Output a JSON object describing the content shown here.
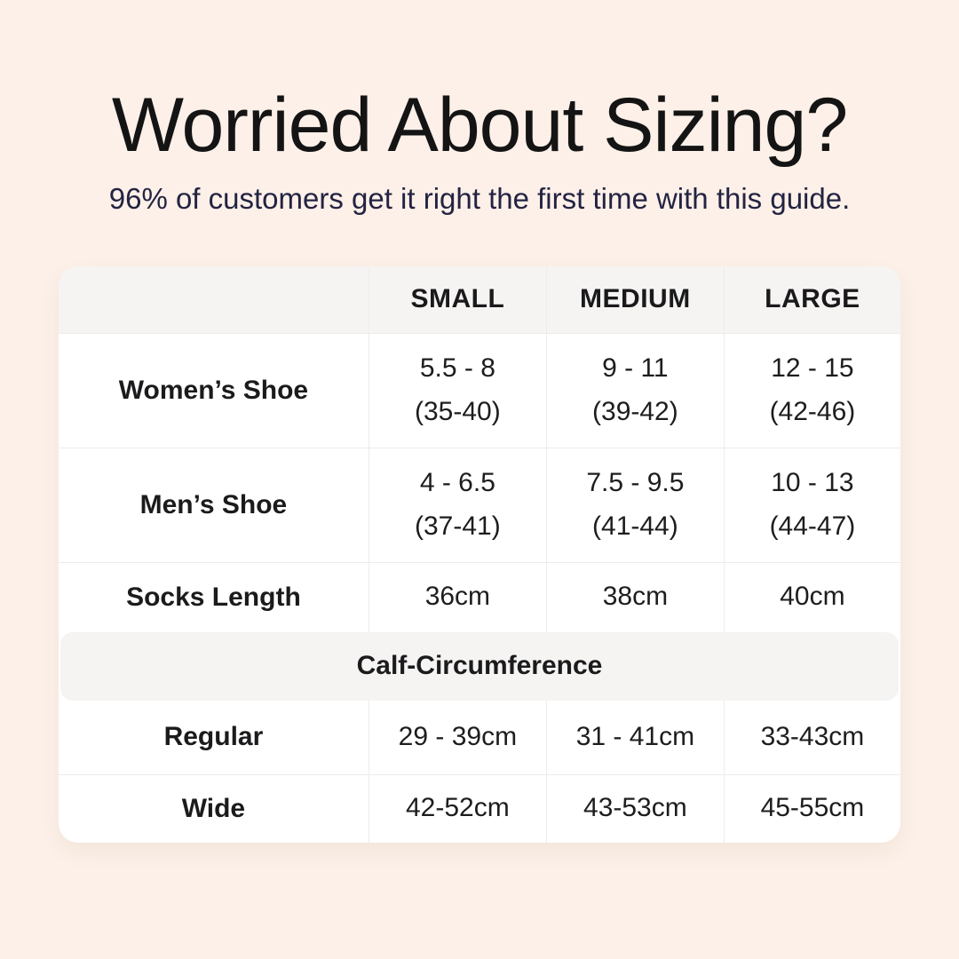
{
  "page_background": "#fcf0e8",
  "colors": {
    "title": "#141414",
    "subtitle": "#232342",
    "card_background": "#ffffff",
    "header_band": "#f5f4f2",
    "divider": "#ececea",
    "table_text": "#1d1d1f"
  },
  "header": {
    "title": "Worried About Sizing?",
    "subtitle": "96% of customers get it right the first time with this guide."
  },
  "table": {
    "column_headers": [
      "SMALL",
      "MEDIUM",
      "LARGE"
    ],
    "shoe_rows": [
      {
        "label": "Women’s Shoe",
        "cells": [
          {
            "line1": "5.5 - 8",
            "line2": "(35-40)"
          },
          {
            "line1": "9 - 11",
            "line2": "(39-42)"
          },
          {
            "line1": "12 - 15",
            "line2": "(42-46)"
          }
        ]
      },
      {
        "label": "Men’s Shoe",
        "cells": [
          {
            "line1": "4 - 6.5",
            "line2": "(37-41)"
          },
          {
            "line1": "7.5 - 9.5",
            "line2": "(41-44)"
          },
          {
            "line1": "10 - 13",
            "line2": "(44-47)"
          }
        ]
      }
    ],
    "socks_row": {
      "label": "Socks Length",
      "cells": [
        "36cm",
        "38cm",
        "40cm"
      ]
    },
    "section_header": "Calf-Circumference",
    "calf_rows": [
      {
        "label": "Regular",
        "cells": [
          "29 - 39cm",
          "31 - 41cm",
          "33-43cm"
        ]
      },
      {
        "label": "Wide",
        "cells": [
          "42-52cm",
          "43-53cm",
          "45-55cm"
        ]
      }
    ]
  }
}
